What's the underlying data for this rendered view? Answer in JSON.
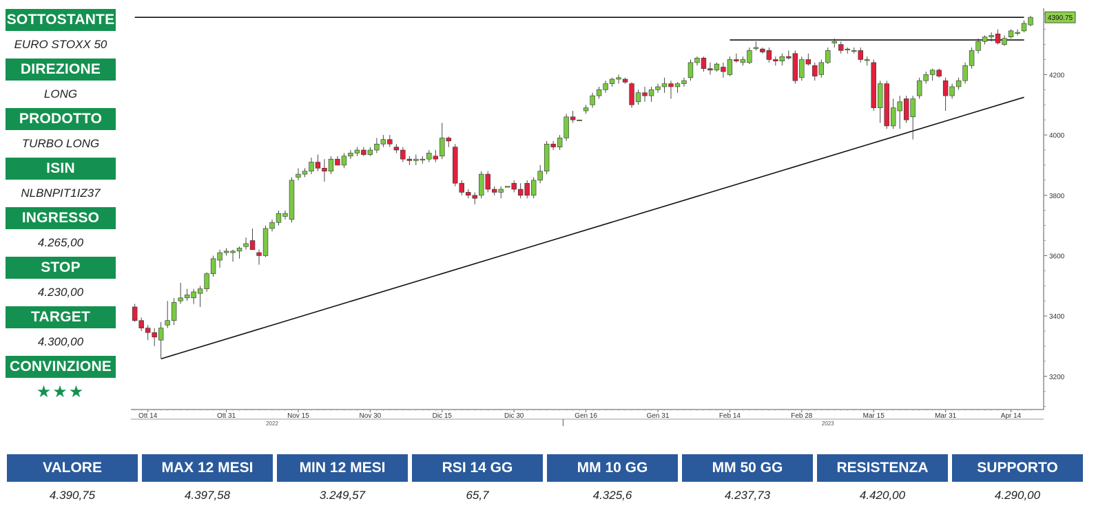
{
  "panel": [
    {
      "label": "SOTTOSTANTE",
      "value": "EURO STOXX 50"
    },
    {
      "label": "DIREZIONE",
      "value": "LONG"
    },
    {
      "label": "PRODOTTO",
      "value": "TURBO LONG"
    },
    {
      "label": "ISIN",
      "value": "NLBNPIT1IZ37"
    },
    {
      "label": "INGRESSO",
      "value": "4.265,00"
    },
    {
      "label": "STOP",
      "value": "4.230,00"
    },
    {
      "label": "TARGET",
      "value": "4.300,00"
    },
    {
      "label": "CONVINZIONE",
      "value": "★★★"
    }
  ],
  "stats": {
    "headers": [
      "VALORE",
      "MAX 12 MESI",
      "MIN 12 MESI",
      "RSI 14 GG",
      "MM 10 GG",
      "MM 50 GG",
      "RESISTENZA",
      "SUPPORTO"
    ],
    "values": [
      "4.390,75",
      "4.397,58",
      "3.249,57",
      "65,7",
      "4.325,6",
      "4.237,73",
      "4.420,00",
      "4.290,00"
    ]
  },
  "colors": {
    "up": "#7ac943",
    "down": "#e0203c",
    "panel_head": "#149150",
    "table_head": "#2a5a9c",
    "last_price_tag": "#8ed04c"
  },
  "chart_data": {
    "type": "candlestick",
    "last_price_label": "4390.75",
    "ylim": [
      3090,
      4420
    ],
    "yticks": [
      3200,
      3400,
      3600,
      3800,
      4000,
      4200
    ],
    "xticks": [
      {
        "i": 2,
        "label": "Ott 14"
      },
      {
        "i": 14,
        "label": "Ott 31"
      },
      {
        "i": 25,
        "label": "Nov 15"
      },
      {
        "i": 36,
        "label": "Nov 30"
      },
      {
        "i": 47,
        "label": "Dic 15"
      },
      {
        "i": 58,
        "label": "Dic 30"
      },
      {
        "i": 69,
        "label": "Gen 16"
      },
      {
        "i": 80,
        "label": "Gen 31"
      },
      {
        "i": 91,
        "label": "Feb 14"
      },
      {
        "i": 102,
        "label": "Feb 28"
      },
      {
        "i": 113,
        "label": "Mar 15"
      },
      {
        "i": 124,
        "label": "Mar 31"
      },
      {
        "i": 134,
        "label": "Apr 14"
      }
    ],
    "year_labels": [
      {
        "i": 21,
        "label": "2022"
      },
      {
        "i": 106,
        "label": "2023"
      }
    ],
    "year_separator_i": 65,
    "candles": [
      {
        "o": 3430,
        "h": 3440,
        "l": 3380,
        "c": 3385
      },
      {
        "o": 3385,
        "h": 3395,
        "l": 3350,
        "c": 3360
      },
      {
        "o": 3360,
        "h": 3370,
        "l": 3320,
        "c": 3345
      },
      {
        "o": 3345,
        "h": 3360,
        "l": 3300,
        "c": 3330
      },
      {
        "o": 3320,
        "h": 3380,
        "l": 3260,
        "c": 3360
      },
      {
        "o": 3370,
        "h": 3450,
        "l": 3360,
        "c": 3385
      },
      {
        "o": 3385,
        "h": 3460,
        "l": 3370,
        "c": 3445
      },
      {
        "o": 3450,
        "h": 3510,
        "l": 3440,
        "c": 3460
      },
      {
        "o": 3460,
        "h": 3490,
        "l": 3450,
        "c": 3470
      },
      {
        "o": 3460,
        "h": 3490,
        "l": 3440,
        "c": 3480
      },
      {
        "o": 3475,
        "h": 3500,
        "l": 3430,
        "c": 3490
      },
      {
        "o": 3490,
        "h": 3545,
        "l": 3480,
        "c": 3540
      },
      {
        "o": 3540,
        "h": 3600,
        "l": 3530,
        "c": 3590
      },
      {
        "o": 3585,
        "h": 3620,
        "l": 3560,
        "c": 3610
      },
      {
        "o": 3610,
        "h": 3625,
        "l": 3600,
        "c": 3615
      },
      {
        "o": 3610,
        "h": 3620,
        "l": 3580,
        "c": 3615
      },
      {
        "o": 3615,
        "h": 3630,
        "l": 3590,
        "c": 3625
      },
      {
        "o": 3630,
        "h": 3660,
        "l": 3620,
        "c": 3640
      },
      {
        "o": 3650,
        "h": 3690,
        "l": 3630,
        "c": 3620
      },
      {
        "o": 3610,
        "h": 3620,
        "l": 3570,
        "c": 3600
      },
      {
        "o": 3600,
        "h": 3700,
        "l": 3595,
        "c": 3690
      },
      {
        "o": 3690,
        "h": 3720,
        "l": 3680,
        "c": 3710
      },
      {
        "o": 3710,
        "h": 3750,
        "l": 3700,
        "c": 3740
      },
      {
        "o": 3730,
        "h": 3750,
        "l": 3720,
        "c": 3740
      },
      {
        "o": 3720,
        "h": 3860,
        "l": 3710,
        "c": 3850
      },
      {
        "o": 3860,
        "h": 3890,
        "l": 3850,
        "c": 3870
      },
      {
        "o": 3870,
        "h": 3890,
        "l": 3860,
        "c": 3880
      },
      {
        "o": 3880,
        "h": 3925,
        "l": 3870,
        "c": 3910
      },
      {
        "o": 3910,
        "h": 3935,
        "l": 3880,
        "c": 3890
      },
      {
        "o": 3890,
        "h": 3920,
        "l": 3845,
        "c": 3880
      },
      {
        "o": 3880,
        "h": 3930,
        "l": 3870,
        "c": 3920
      },
      {
        "o": 3920,
        "h": 3930,
        "l": 3900,
        "c": 3900
      },
      {
        "o": 3900,
        "h": 3940,
        "l": 3890,
        "c": 3930
      },
      {
        "o": 3930,
        "h": 3950,
        "l": 3920,
        "c": 3940
      },
      {
        "o": 3940,
        "h": 3960,
        "l": 3930,
        "c": 3950
      },
      {
        "o": 3950,
        "h": 3960,
        "l": 3930,
        "c": 3935
      },
      {
        "o": 3935,
        "h": 3960,
        "l": 3930,
        "c": 3950
      },
      {
        "o": 3950,
        "h": 3990,
        "l": 3940,
        "c": 3970
      },
      {
        "o": 3970,
        "h": 4000,
        "l": 3960,
        "c": 3985
      },
      {
        "o": 3985,
        "h": 4000,
        "l": 3960,
        "c": 3970
      },
      {
        "o": 3960,
        "h": 3970,
        "l": 3940,
        "c": 3950
      },
      {
        "o": 3950,
        "h": 3960,
        "l": 3910,
        "c": 3920
      },
      {
        "o": 3920,
        "h": 3930,
        "l": 3900,
        "c": 3915
      },
      {
        "o": 3915,
        "h": 3935,
        "l": 3900,
        "c": 3920
      },
      {
        "o": 3920,
        "h": 3930,
        "l": 3905,
        "c": 3920
      },
      {
        "o": 3920,
        "h": 3950,
        "l": 3910,
        "c": 3940
      },
      {
        "o": 3930,
        "h": 3950,
        "l": 3910,
        "c": 3920
      },
      {
        "o": 3930,
        "h": 4040,
        "l": 3920,
        "c": 3990
      },
      {
        "o": 3990,
        "h": 3995,
        "l": 3960,
        "c": 3980
      },
      {
        "o": 3960,
        "h": 3970,
        "l": 3830,
        "c": 3840
      },
      {
        "o": 3840,
        "h": 3850,
        "l": 3800,
        "c": 3810
      },
      {
        "o": 3810,
        "h": 3820,
        "l": 3790,
        "c": 3800
      },
      {
        "o": 3800,
        "h": 3810,
        "l": 3770,
        "c": 3790
      },
      {
        "o": 3800,
        "h": 3880,
        "l": 3790,
        "c": 3870
      },
      {
        "o": 3870,
        "h": 3880,
        "l": 3810,
        "c": 3820
      },
      {
        "o": 3820,
        "h": 3830,
        "l": 3800,
        "c": 3810
      },
      {
        "o": 3810,
        "h": 3830,
        "l": 3790,
        "c": 3820
      },
      {
        "o": 3830,
        "h": 3830,
        "l": 3830,
        "c": 3830
      },
      {
        "o": 3840,
        "h": 3850,
        "l": 3810,
        "c": 3820
      },
      {
        "o": 3820,
        "h": 3840,
        "l": 3790,
        "c": 3800
      },
      {
        "o": 3840,
        "h": 3850,
        "l": 3790,
        "c": 3800
      },
      {
        "o": 3800,
        "h": 3860,
        "l": 3790,
        "c": 3850
      },
      {
        "o": 3850,
        "h": 3900,
        "l": 3840,
        "c": 3880
      },
      {
        "o": 3880,
        "h": 3980,
        "l": 3870,
        "c": 3970
      },
      {
        "o": 3970,
        "h": 3980,
        "l": 3950,
        "c": 3960
      },
      {
        "o": 3960,
        "h": 4000,
        "l": 3950,
        "c": 3990
      },
      {
        "o": 3990,
        "h": 4070,
        "l": 3980,
        "c": 4060
      },
      {
        "o": 4060,
        "h": 4080,
        "l": 4040,
        "c": 4050
      },
      {
        "o": 4050,
        "h": 4050,
        "l": 4050,
        "c": 4050
      },
      {
        "o": 4080,
        "h": 4100,
        "l": 4070,
        "c": 4090
      },
      {
        "o": 4100,
        "h": 4140,
        "l": 4090,
        "c": 4130
      },
      {
        "o": 4130,
        "h": 4160,
        "l": 4120,
        "c": 4150
      },
      {
        "o": 4150,
        "h": 4180,
        "l": 4140,
        "c": 4170
      },
      {
        "o": 4170,
        "h": 4190,
        "l": 4160,
        "c": 4185
      },
      {
        "o": 4185,
        "h": 4200,
        "l": 4170,
        "c": 4190
      },
      {
        "o": 4185,
        "h": 4190,
        "l": 4170,
        "c": 4175
      },
      {
        "o": 4170,
        "h": 4175,
        "l": 4090,
        "c": 4100
      },
      {
        "o": 4110,
        "h": 4150,
        "l": 4100,
        "c": 4140
      },
      {
        "o": 4140,
        "h": 4160,
        "l": 4110,
        "c": 4130
      },
      {
        "o": 4130,
        "h": 4160,
        "l": 4110,
        "c": 4150
      },
      {
        "o": 4150,
        "h": 4170,
        "l": 4140,
        "c": 4160
      },
      {
        "o": 4160,
        "h": 4190,
        "l": 4140,
        "c": 4170
      },
      {
        "o": 4170,
        "h": 4180,
        "l": 4120,
        "c": 4160
      },
      {
        "o": 4160,
        "h": 4175,
        "l": 4140,
        "c": 4170
      },
      {
        "o": 4170,
        "h": 4190,
        "l": 4160,
        "c": 4180
      },
      {
        "o": 4190,
        "h": 4250,
        "l": 4180,
        "c": 4240
      },
      {
        "o": 4240,
        "h": 4260,
        "l": 4230,
        "c": 4255
      },
      {
        "o": 4255,
        "h": 4260,
        "l": 4210,
        "c": 4220
      },
      {
        "o": 4220,
        "h": 4240,
        "l": 4200,
        "c": 4215
      },
      {
        "o": 4215,
        "h": 4240,
        "l": 4210,
        "c": 4235
      },
      {
        "o": 4225,
        "h": 4240,
        "l": 4190,
        "c": 4210
      },
      {
        "o": 4200,
        "h": 4260,
        "l": 4195,
        "c": 4250
      },
      {
        "o": 4250,
        "h": 4270,
        "l": 4240,
        "c": 4245
      },
      {
        "o": 4240,
        "h": 4260,
        "l": 4230,
        "c": 4250
      },
      {
        "o": 4240,
        "h": 4290,
        "l": 4235,
        "c": 4280
      },
      {
        "o": 4290,
        "h": 4310,
        "l": 4280,
        "c": 4290
      },
      {
        "o": 4285,
        "h": 4290,
        "l": 4270,
        "c": 4275
      },
      {
        "o": 4280,
        "h": 4290,
        "l": 4240,
        "c": 4250
      },
      {
        "o": 4250,
        "h": 4260,
        "l": 4230,
        "c": 4245
      },
      {
        "o": 4245,
        "h": 4270,
        "l": 4230,
        "c": 4260
      },
      {
        "o": 4260,
        "h": 4280,
        "l": 4250,
        "c": 4255
      },
      {
        "o": 4270,
        "h": 4280,
        "l": 4170,
        "c": 4180
      },
      {
        "o": 4190,
        "h": 4260,
        "l": 4180,
        "c": 4250
      },
      {
        "o": 4250,
        "h": 4270,
        "l": 4230,
        "c": 4235
      },
      {
        "o": 4230,
        "h": 4240,
        "l": 4180,
        "c": 4195
      },
      {
        "o": 4200,
        "h": 4250,
        "l": 4190,
        "c": 4240
      },
      {
        "o": 4240,
        "h": 4290,
        "l": 4235,
        "c": 4280
      },
      {
        "o": 4305,
        "h": 4320,
        "l": 4290,
        "c": 4310
      },
      {
        "o": 4300,
        "h": 4310,
        "l": 4270,
        "c": 4280
      },
      {
        "o": 4285,
        "h": 4290,
        "l": 4270,
        "c": 4285
      },
      {
        "o": 4280,
        "h": 4290,
        "l": 4270,
        "c": 4280
      },
      {
        "o": 4280,
        "h": 4290,
        "l": 4240,
        "c": 4250
      },
      {
        "o": 4250,
        "h": 4260,
        "l": 4230,
        "c": 4250
      },
      {
        "o": 4240,
        "h": 4250,
        "l": 4080,
        "c": 4090
      },
      {
        "o": 4090,
        "h": 4180,
        "l": 4040,
        "c": 4170
      },
      {
        "o": 4170,
        "h": 4180,
        "l": 4020,
        "c": 4030
      },
      {
        "o": 4030,
        "h": 4120,
        "l": 4020,
        "c": 4090
      },
      {
        "o": 4080,
        "h": 4130,
        "l": 4020,
        "c": 4110
      },
      {
        "o": 4120,
        "h": 4130,
        "l": 4040,
        "c": 4050
      },
      {
        "o": 4060,
        "h": 4130,
        "l": 3985,
        "c": 4120
      },
      {
        "o": 4130,
        "h": 4190,
        "l": 4120,
        "c": 4180
      },
      {
        "o": 4180,
        "h": 4210,
        "l": 4170,
        "c": 4200
      },
      {
        "o": 4200,
        "h": 4220,
        "l": 4180,
        "c": 4215
      },
      {
        "o": 4215,
        "h": 4220,
        "l": 4190,
        "c": 4195
      },
      {
        "o": 4180,
        "h": 4190,
        "l": 4080,
        "c": 4130
      },
      {
        "o": 4130,
        "h": 4170,
        "l": 4120,
        "c": 4160
      },
      {
        "o": 4160,
        "h": 4190,
        "l": 4150,
        "c": 4180
      },
      {
        "o": 4180,
        "h": 4240,
        "l": 4170,
        "c": 4230
      },
      {
        "o": 4230,
        "h": 4290,
        "l": 4220,
        "c": 4280
      },
      {
        "o": 4280,
        "h": 4320,
        "l": 4270,
        "c": 4310
      },
      {
        "o": 4310,
        "h": 4330,
        "l": 4300,
        "c": 4325
      },
      {
        "o": 4325,
        "h": 4340,
        "l": 4310,
        "c": 4330
      },
      {
        "o": 4335,
        "h": 4350,
        "l": 4300,
        "c": 4305
      },
      {
        "o": 4300,
        "h": 4330,
        "l": 4295,
        "c": 4320
      },
      {
        "o": 4325,
        "h": 4350,
        "l": 4320,
        "c": 4345
      },
      {
        "o": 4340,
        "h": 4350,
        "l": 4330,
        "c": 4340
      },
      {
        "o": 4345,
        "h": 4380,
        "l": 4340,
        "c": 4370
      },
      {
        "o": 4365,
        "h": 4395,
        "l": 4360,
        "c": 4390
      }
    ],
    "lines": [
      {
        "name": "rising-trendline",
        "i1": 4,
        "y1": 3258,
        "i2": 136,
        "y2": 4125
      },
      {
        "name": "current-price-line",
        "i1": 0,
        "y1": 4390,
        "i2": 136,
        "y2": 4390
      },
      {
        "name": "resistance-line",
        "i1": 91,
        "y1": 4315,
        "i2": 136,
        "y2": 4315
      }
    ]
  }
}
